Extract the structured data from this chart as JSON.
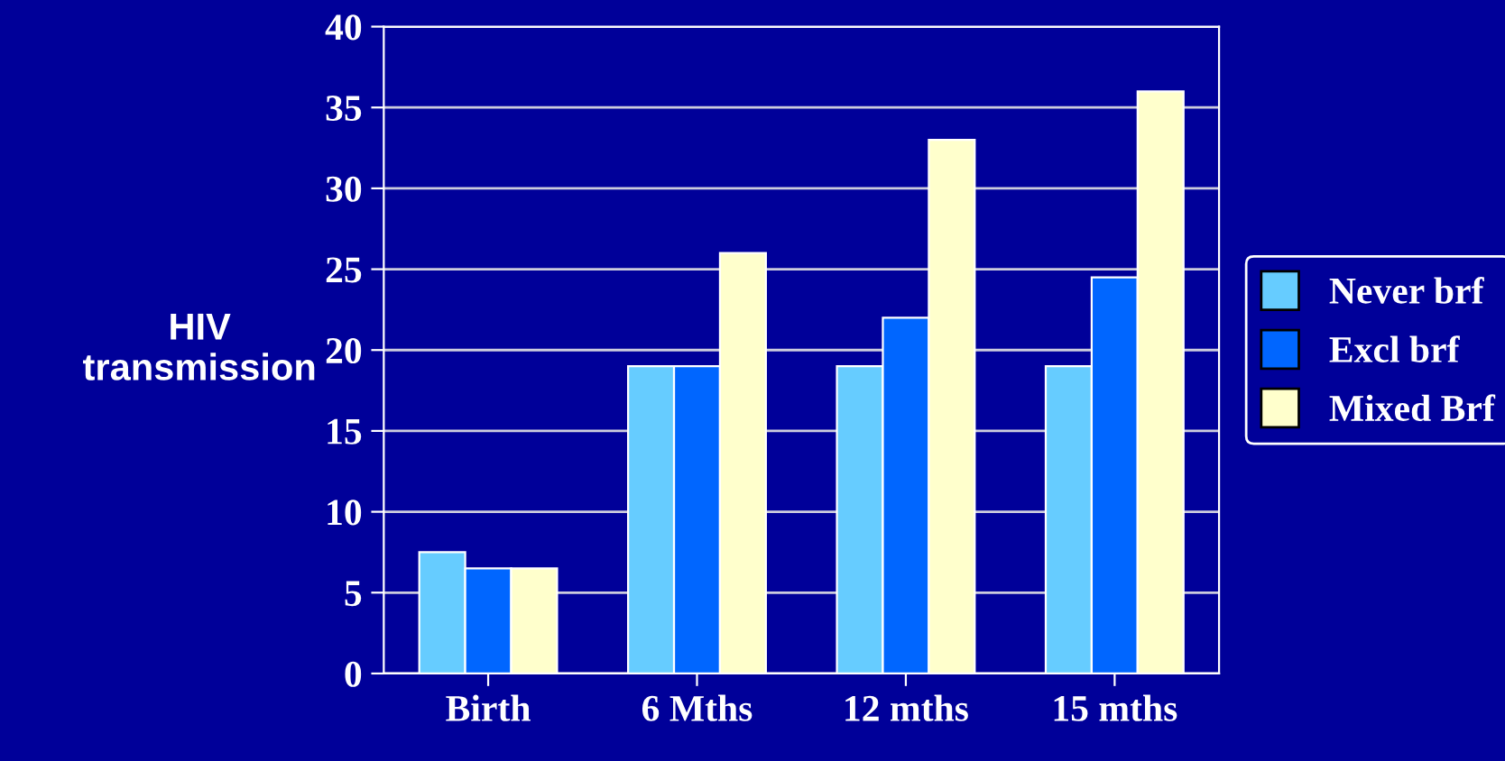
{
  "chart_data": {
    "type": "bar",
    "ylabel": "HIV\ntransmission",
    "categories": [
      "Birth",
      "6 Mths",
      "12 mths",
      "15 mths"
    ],
    "series": [
      {
        "name": "Never brf",
        "color": "#66ccff",
        "values": [
          7.5,
          19,
          19,
          19
        ]
      },
      {
        "name": "Excl brf",
        "color": "#0066ff",
        "values": [
          6.5,
          19,
          22,
          24.5
        ]
      },
      {
        "name": "Mixed Brf",
        "color": "#ffffcc",
        "values": [
          6.5,
          26,
          33,
          36
        ]
      }
    ],
    "ylim": [
      0,
      40
    ],
    "yticks": [
      0,
      5,
      10,
      15,
      20,
      25,
      30,
      35,
      40
    ],
    "grid": "y",
    "legend": "right"
  }
}
